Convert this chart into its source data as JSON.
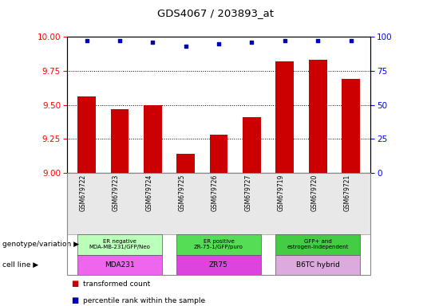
{
  "title": "GDS4067 / 203893_at",
  "samples": [
    "GSM679722",
    "GSM679723",
    "GSM679724",
    "GSM679725",
    "GSM679726",
    "GSM679727",
    "GSM679719",
    "GSM679720",
    "GSM679721"
  ],
  "bar_values": [
    9.56,
    9.47,
    9.5,
    9.14,
    9.28,
    9.41,
    9.82,
    9.83,
    9.69
  ],
  "percentile_values": [
    97,
    97,
    96,
    93,
    95,
    96,
    97,
    97,
    97
  ],
  "bar_color": "#cc0000",
  "dot_color": "#0000bb",
  "ylim_left": [
    9.0,
    10.0
  ],
  "ylim_right": [
    0,
    100
  ],
  "yticks_left": [
    9.0,
    9.25,
    9.5,
    9.75,
    10.0
  ],
  "yticks_right": [
    0,
    25,
    50,
    75,
    100
  ],
  "groups": [
    {
      "label": "ER negative\nMDA-MB-231/GFP/Neo",
      "samples": [
        0,
        1,
        2
      ],
      "color": "#bbffbb"
    },
    {
      "label": "ER positive\nZR-75-1/GFP/puro",
      "samples": [
        3,
        4,
        5
      ],
      "color": "#55dd55"
    },
    {
      "label": "GFP+ and\nestrogen-independent",
      "samples": [
        6,
        7,
        8
      ],
      "color": "#44cc44"
    }
  ],
  "cell_lines": [
    {
      "label": "MDA231",
      "samples": [
        0,
        1,
        2
      ],
      "color": "#ee66ee"
    },
    {
      "label": "ZR75",
      "samples": [
        3,
        4,
        5
      ],
      "color": "#dd44dd"
    },
    {
      "label": "B6TC hybrid",
      "samples": [
        6,
        7,
        8
      ],
      "color": "#ddaadd"
    }
  ],
  "legend_items": [
    {
      "label": "transformed count",
      "color": "#cc0000"
    },
    {
      "label": "percentile rank within the sample",
      "color": "#0000bb"
    }
  ],
  "xlabel_row1": "genotype/variation",
  "xlabel_row2": "cell line",
  "bg_color": "#ffffff"
}
